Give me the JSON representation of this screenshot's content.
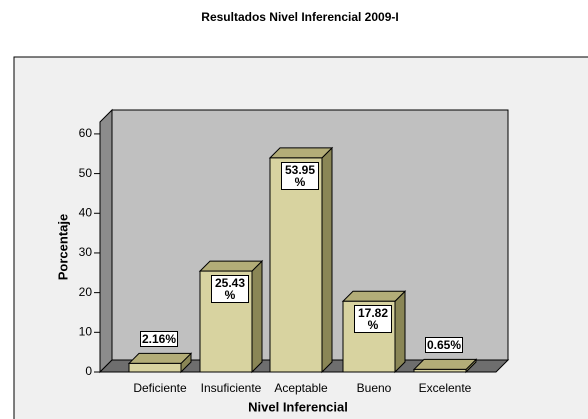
{
  "chart_data": {
    "type": "bar3d",
    "title": "Resultados Nivel Inferencial 2009-I",
    "x_label": "Nivel Inferencial",
    "y_label": "Porcentaje",
    "categories": [
      "Deficiente",
      "Insuficiente",
      "Aceptable",
      "Bueno",
      "Excelente"
    ],
    "values": [
      2.16,
      25.43,
      53.95,
      17.82,
      0.65
    ],
    "value_labels": [
      "2.16%",
      "25.43 %",
      "53.95 %",
      "17.82 %",
      "0.65%"
    ],
    "color": "#d8d3a0",
    "ylim": [
      0,
      63
    ],
    "yticks": [
      0,
      10,
      20,
      30,
      40,
      50,
      60
    ]
  }
}
